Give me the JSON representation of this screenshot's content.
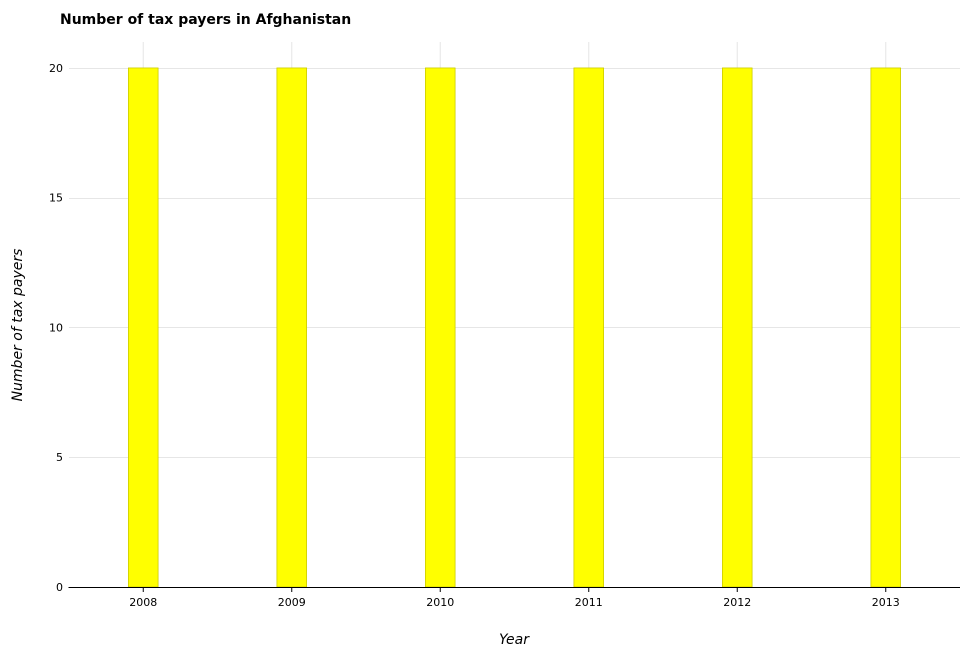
{
  "chart_data": {
    "type": "bar",
    "title": "Number of tax payers in Afghanistan",
    "xlabel": "Year",
    "ylabel": "Number of tax payers",
    "categories": [
      "2008",
      "2009",
      "2010",
      "2011",
      "2012",
      "2013"
    ],
    "values": [
      20,
      20,
      20,
      20,
      20,
      20
    ],
    "ylim": [
      0,
      21
    ],
    "yticks": [
      0,
      5,
      10,
      15,
      20
    ],
    "grid": true,
    "bar_color": "#ffff00"
  }
}
